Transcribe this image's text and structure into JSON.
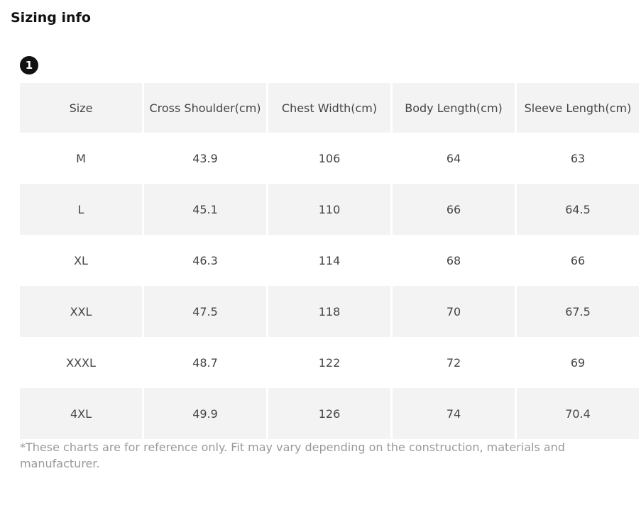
{
  "header": {
    "title": "Sizing info",
    "badge": "1"
  },
  "table": {
    "columns": [
      "Size",
      "Cross Shoulder(cm)",
      "Chest Width(cm)",
      "Body Length(cm)",
      "Sleeve Length(cm)"
    ],
    "rows": [
      [
        "M",
        "43.9",
        "106",
        "64",
        "63"
      ],
      [
        "L",
        "45.1",
        "110",
        "66",
        "64.5"
      ],
      [
        "XL",
        "46.3",
        "114",
        "68",
        "66"
      ],
      [
        "XXL",
        "47.5",
        "118",
        "70",
        "67.5"
      ],
      [
        "XXXL",
        "48.7",
        "122",
        "72",
        "69"
      ],
      [
        "4XL",
        "49.9",
        "126",
        "74",
        "70.4"
      ]
    ]
  },
  "footnote": "*These charts are for reference only. Fit may vary depending on the construction, materials and manufacturer."
}
